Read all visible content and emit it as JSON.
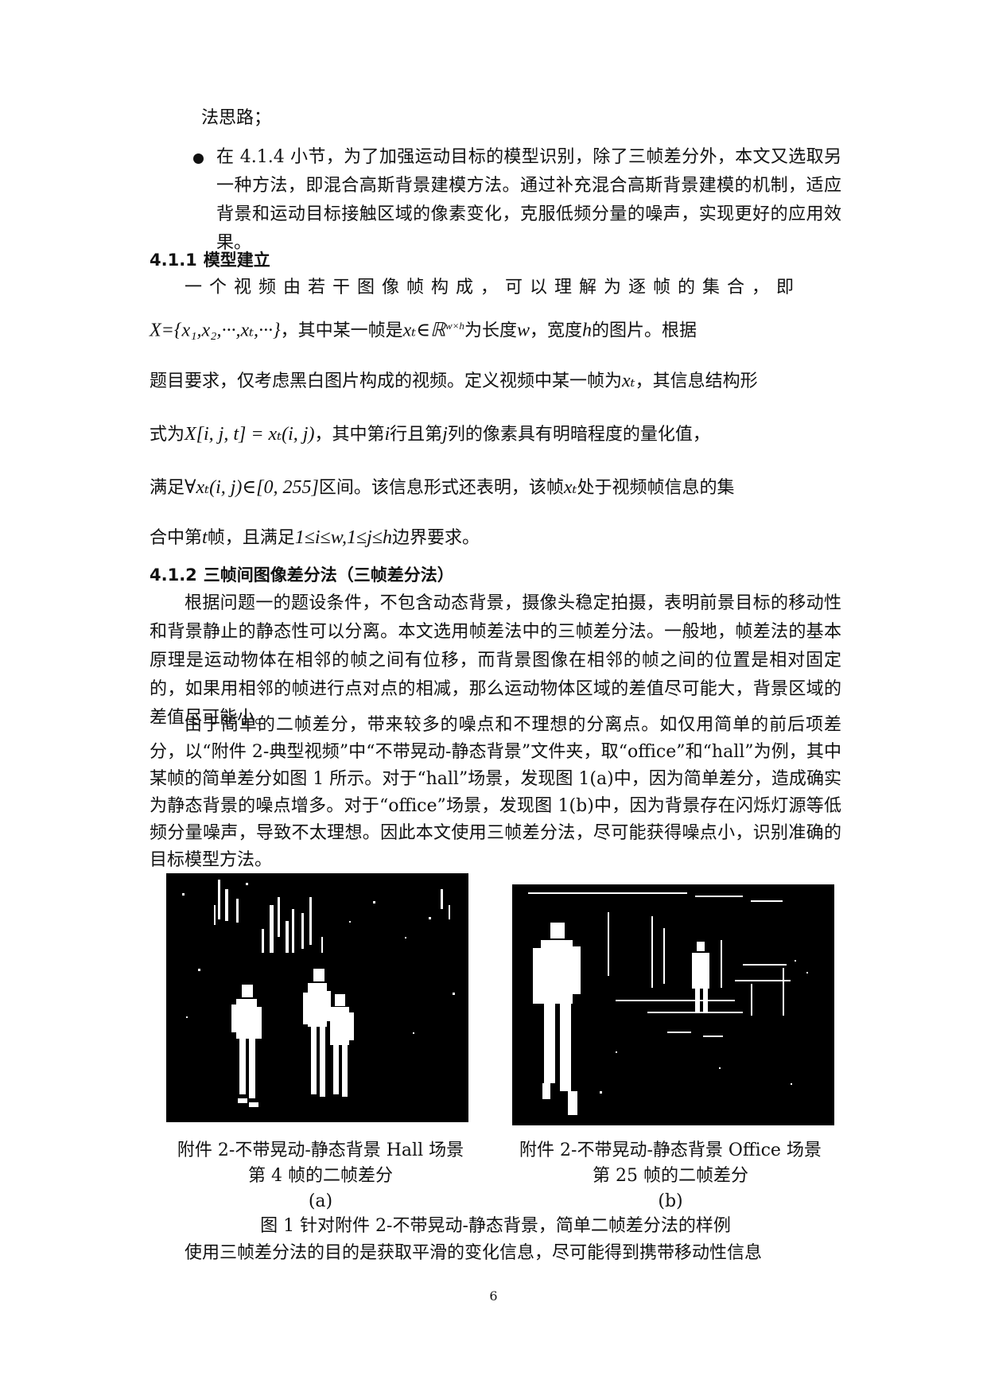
{
  "top_lines": {
    "cont": "法思路；",
    "bullet_text": "在 4.1.4 小节，为了加强运动目标的模型识别，除了三帧差分外，本文又选取另一种方法，即混合高斯背景建模方法。通过补充混合高斯背景建模的机制，适应背景和运动目标接触区域的像素变化，克服低频分量的噪声，实现更好的应用效果。"
  },
  "section_411": {
    "number": "4.1.1",
    "title": "模型建立",
    "line1": "一个视频由若干图像帧构成，可以理解为逐帧的集合，即",
    "line2_a": "X={x₁,x₂,···,xₜ,···}",
    "line2_b": "，其中某一帧是",
    "line2_c": "xₜ∈ℝ",
    "line2_c_sup": "w×h",
    "line2_d": "为长度",
    "line2_e": "w",
    "line2_f": "，宽度",
    "line2_g": "h",
    "line2_h": "的图片。根据",
    "line3_a": "题目要求，仅考虑黑白图片构成的视频。定义视频中某一帧为",
    "line3_b": "xₜ",
    "line3_c": "，其信息结构形",
    "line4_a": "式为",
    "line4_b": "X[i, j, t] = xₜ(i, j)",
    "line4_c": "，其中第",
    "line4_d": "i",
    "line4_e": "行且第",
    "line4_f": "j",
    "line4_g": "列的像素具有明暗程度的量化值，",
    "line5_a": "满足",
    "line5_b": "∀xₜ(i, j)∈[0, 255]",
    "line5_c": "区间。该信息形式还表明，该帧",
    "line5_d": "xₜ",
    "line5_e": "处于视频帧信息的集",
    "line6_a": "合中第",
    "line6_b": "t",
    "line6_c": "帧，且满足",
    "line6_d": "1≤i≤w,1≤j≤h",
    "line6_e": "边界要求。"
  },
  "section_412": {
    "number": "4.1.2",
    "title": "三帧间图像差分法（三帧差分法）",
    "para1": "根据问题一的题设条件，不包含动态背景，摄像头稳定拍摄，表明前景目标的移动性和背景静止的静态性可以分离。本文选用帧差法中的三帧差分法。一般地，帧差法的基本原理是运动物体在相邻的帧之间有位移，而背景图像在相邻的帧之间的位置是相对固定的，如果用相邻的帧进行点对点的相减，那么运动物体区域的差值尽可能大，背景区域的差值尽可能小。",
    "para2": "由于简单的二帧差分，带来较多的噪点和不理想的分离点。如仅用简单的前后项差分，以“附件 2-典型视频”中“不带晃动-静态背景”文件夹，取“office”和“hall”为例，其中某帧的简单差分如图 1 所示。对于“hall”场景，发现图 1(a)中，因为简单差分，造成确实为静态背景的噪点增多。对于“office”场景，发现图 1(b)中，因为背景存在闪烁灯源等低频分量噪声，导致不太理想。因此本文使用三帧差分法，尽可能获得噪点小，识别准确的目标模型方法。"
  },
  "figure": {
    "left_caption_1": "附件 2-不带晃动-静态背景 Hall 场景",
    "left_caption_2": "第 4 帧的二帧差分",
    "left_tag": "(a)",
    "right_caption_1": "附件 2-不带晃动-静态背景 Office 场景",
    "right_caption_2": "第 25 帧的二帧差分",
    "right_tag": "(b)",
    "caption": "图 1 针对附件 2-不带晃动-静态背景，简单二帧差分法的样例"
  },
  "last_line": "使用三帧差分法的目的是获取平滑的变化信息，尽可能得到携带移动性信息",
  "page_number": "6"
}
